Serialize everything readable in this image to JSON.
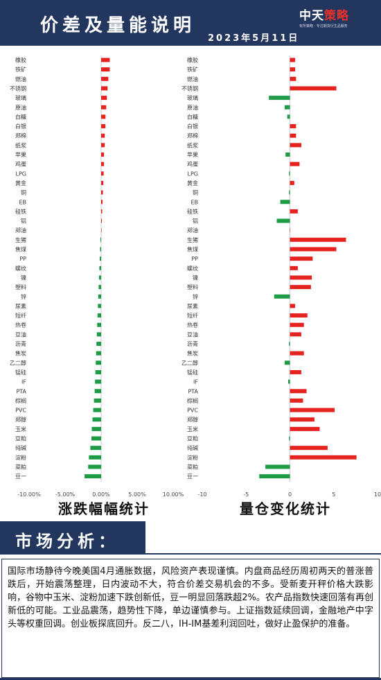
{
  "header": {
    "title": "价差及量能说明",
    "date": "2023年5月11日",
    "logo_main": "中天",
    "logo_accent": "策略",
    "logo_sub": "有所策略 · 专注期货衍生品服务"
  },
  "chart_data": [
    {
      "type": "bar",
      "orientation": "horizontal",
      "title": "涨跌幅幅统计",
      "categories": [
        "橡胶",
        "铁矿",
        "燃油",
        "不锈钢",
        "玻璃",
        "原油",
        "白糖",
        "白银",
        "郑棉",
        "纸浆",
        "苹果",
        "鸡蛋",
        "LPG",
        "黄金",
        "铜",
        "EB",
        "硅铁",
        "铝",
        "郑油",
        "生猪",
        "焦煤",
        "PP",
        "螺纹",
        "镍",
        "塑料",
        "锌",
        "尿素",
        "短纤",
        "热卷",
        "豆油",
        "沥青",
        "焦炭",
        "乙二醇",
        "锰硅",
        "IF",
        "PTA",
        "棕榈",
        "PVC",
        "郑醇",
        "玉米",
        "豆粕",
        "纯碱",
        "淀粉",
        "菜粕",
        "豆一"
      ],
      "values": [
        1.2,
        1.2,
        1.0,
        0.9,
        0.8,
        0.7,
        0.6,
        0.6,
        0.5,
        0.5,
        0.4,
        0.4,
        0.35,
        0.3,
        0.25,
        0.2,
        0.15,
        0.1,
        0.05,
        -0.1,
        -0.15,
        -0.2,
        -0.25,
        -0.3,
        -0.35,
        -0.4,
        -0.45,
        -0.5,
        -0.55,
        -0.6,
        -0.65,
        -0.7,
        -0.75,
        -0.8,
        -0.85,
        -0.9,
        -1.0,
        -1.1,
        -1.2,
        -1.3,
        -1.35,
        -1.5,
        -1.7,
        -1.8,
        -2.3
      ],
      "xlim": [
        -10,
        10
      ],
      "xticks": [
        "-10.00%",
        "-5.00%",
        "0.00%",
        "5.00%",
        "10.00%"
      ],
      "colors": {
        "positive": "#e42320",
        "negative": "#1e9c45"
      }
    },
    {
      "type": "bar",
      "orientation": "horizontal",
      "title": "量仓变化统计",
      "categories": [
        "橡胶",
        "铁矿",
        "燃油",
        "不锈钢",
        "玻璃",
        "原油",
        "白糖",
        "白银",
        "郑棉",
        "纸浆",
        "苹果",
        "鸡蛋",
        "LPG",
        "黄金",
        "铜",
        "EB",
        "硅铁",
        "铝",
        "郑油",
        "生猪",
        "焦煤",
        "PP",
        "螺纹",
        "镍",
        "塑料",
        "锌",
        "尿素",
        "短纤",
        "热卷",
        "豆油",
        "沥青",
        "焦炭",
        "乙二醇",
        "锰硅",
        "IF",
        "PTA",
        "棕榈",
        "PVC",
        "郑醇",
        "玉米",
        "豆粕",
        "纯碱",
        "淀粉",
        "菜粕",
        "豆一"
      ],
      "values": [
        0.6,
        0.6,
        0.7,
        5.3,
        -2.4,
        -0.6,
        -0.3,
        0.7,
        0.7,
        1.3,
        -0.5,
        1.1,
        -0.1,
        0.5,
        -0.1,
        -1.1,
        0.9,
        -1.5,
        0.0,
        6.4,
        5.3,
        2.6,
        0.9,
        2.5,
        2.4,
        -1.8,
        0.6,
        2.0,
        1.6,
        1.3,
        -0.1,
        1.6,
        -0.6,
        1.3,
        -0.2,
        1.9,
        1.5,
        5.1,
        2.8,
        3.4,
        -0.1,
        4.3,
        7.6,
        -2.8,
        -3.5
      ],
      "xlim": [
        -10,
        10
      ],
      "xticks": [
        "-10",
        "-5",
        "0",
        "5",
        "10"
      ],
      "colors": {
        "positive": "#e42320",
        "negative": "#1e9c45"
      }
    }
  ],
  "market": {
    "section_title": "市场分析：",
    "analysis": "国际市场静待今晚美国4月通胀数据，风险资产表现谨慎。内盘商品经历周初两天的普涨普跌后，开始震荡整理，日内波动不大，符合价差交易机会的不多。受新麦开秤价格大跌影响，谷物中玉米、淀粉加速下跌创新低，豆一明显回落跌超2%。农产品指数快速回落有再创新低的可能。工业品震荡，趋势性下降，单边谨慎参与。上证指数延续回调，金融地产中字头等权重回调。创业板探底回升。反二八，IH-IM基差利润回吐，做好止盈保护的准备。"
  }
}
